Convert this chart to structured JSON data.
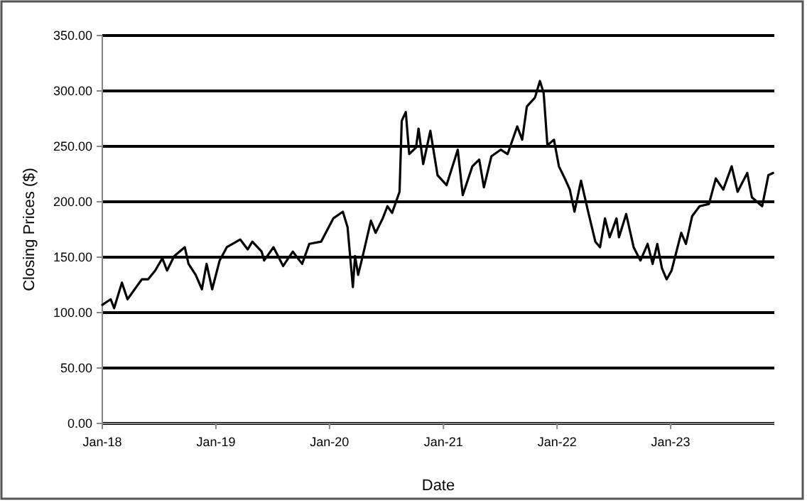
{
  "chart_data": {
    "type": "line",
    "xlabel": "Date",
    "ylabel": "Closing Prices ($)",
    "grid": "y",
    "marker": "none",
    "line_style": "solid",
    "xlim": [
      "2018-01-01",
      "2023-11-30"
    ],
    "xticks": [
      {
        "value": "2018-01-01",
        "label": "Jan-18"
      },
      {
        "value": "2019-01-01",
        "label": "Jan-19"
      },
      {
        "value": "2020-01-01",
        "label": "Jan-20"
      },
      {
        "value": "2021-01-01",
        "label": "Jan-21"
      },
      {
        "value": "2022-01-01",
        "label": "Jan-22"
      },
      {
        "value": "2023-01-01",
        "label": "Jan-23"
      }
    ],
    "ylim": [
      0,
      350
    ],
    "yticks": [
      {
        "value": 0,
        "label": "0.00"
      },
      {
        "value": 50,
        "label": "50.00"
      },
      {
        "value": 100,
        "label": "100.00"
      },
      {
        "value": 150,
        "label": "150.00"
      },
      {
        "value": 200,
        "label": "200.00"
      },
      {
        "value": 250,
        "label": "250.00"
      },
      {
        "value": 300,
        "label": "300.00"
      },
      {
        "value": 350,
        "label": "350.00"
      }
    ],
    "x": [
      "2018-01-01",
      "2018-01-28",
      "2018-02-08",
      "2018-03-05",
      "2018-03-23",
      "2018-04-20",
      "2018-05-08",
      "2018-05-28",
      "2018-06-20",
      "2018-07-13",
      "2018-07-28",
      "2018-08-20",
      "2018-09-23",
      "2018-10-05",
      "2018-10-28",
      "2018-11-17",
      "2018-12-02",
      "2018-12-20",
      "2019-01-13",
      "2019-02-05",
      "2019-03-20",
      "2019-04-13",
      "2019-04-28",
      "2019-05-28",
      "2019-06-05",
      "2019-07-05",
      "2019-08-05",
      "2019-09-05",
      "2019-10-05",
      "2019-10-28",
      "2019-12-05",
      "2020-01-13",
      "2020-02-13",
      "2020-02-28",
      "2020-03-16",
      "2020-03-23",
      "2020-04-02",
      "2020-04-20",
      "2020-05-13",
      "2020-05-28",
      "2020-06-20",
      "2020-07-05",
      "2020-07-20",
      "2020-08-13",
      "2020-08-20",
      "2020-09-02",
      "2020-09-13",
      "2020-10-05",
      "2020-10-13",
      "2020-10-28",
      "2020-11-20",
      "2020-12-13",
      "2021-01-11",
      "2021-02-16",
      "2021-03-04",
      "2021-04-04",
      "2021-04-26",
      "2021-05-11",
      "2021-06-04",
      "2021-07-04",
      "2021-07-26",
      "2021-08-26",
      "2021-09-11",
      "2021-09-26",
      "2021-10-22",
      "2021-11-07",
      "2021-11-19",
      "2021-12-01",
      "2021-12-22",
      "2022-01-07",
      "2022-01-26",
      "2022-02-11",
      "2022-02-26",
      "2022-03-19",
      "2022-04-11",
      "2022-05-04",
      "2022-05-19",
      "2022-06-04",
      "2022-06-19",
      "2022-07-11",
      "2022-07-19",
      "2022-08-11",
      "2022-09-04",
      "2022-09-26",
      "2022-10-19",
      "2022-11-04",
      "2022-11-19",
      "2022-12-04",
      "2022-12-19",
      "2023-01-04",
      "2023-02-04",
      "2023-02-19",
      "2023-03-11",
      "2023-04-04",
      "2023-05-04",
      "2023-05-26",
      "2023-06-19",
      "2023-07-16",
      "2023-08-04",
      "2023-09-04",
      "2023-09-19",
      "2023-10-22",
      "2023-11-11",
      "2023-11-26"
    ],
    "series": [
      {
        "color": "#000000",
        "values": [
          107,
          112,
          104,
          127,
          112,
          123,
          130,
          130,
          138,
          149,
          138,
          151,
          159,
          144,
          134,
          121,
          144,
          121,
          147,
          159,
          166,
          157,
          164,
          155,
          147,
          159,
          142,
          155,
          144,
          162,
          164,
          185,
          191,
          177,
          123,
          151,
          134,
          155,
          183,
          172,
          185,
          196,
          190,
          209,
          273,
          281,
          243,
          249,
          266,
          234,
          264,
          224,
          215,
          247,
          206,
          232,
          238,
          213,
          241,
          247,
          243,
          268,
          256,
          286,
          294,
          309,
          298,
          251,
          256,
          232,
          221,
          211,
          191,
          219,
          191,
          164,
          159,
          185,
          168,
          185,
          168,
          189,
          159,
          147,
          162,
          144,
          162,
          140,
          130,
          138,
          172,
          162,
          187,
          196,
          198,
          221,
          211,
          232,
          209,
          226,
          204,
          196,
          224,
          226
        ]
      }
    ]
  }
}
